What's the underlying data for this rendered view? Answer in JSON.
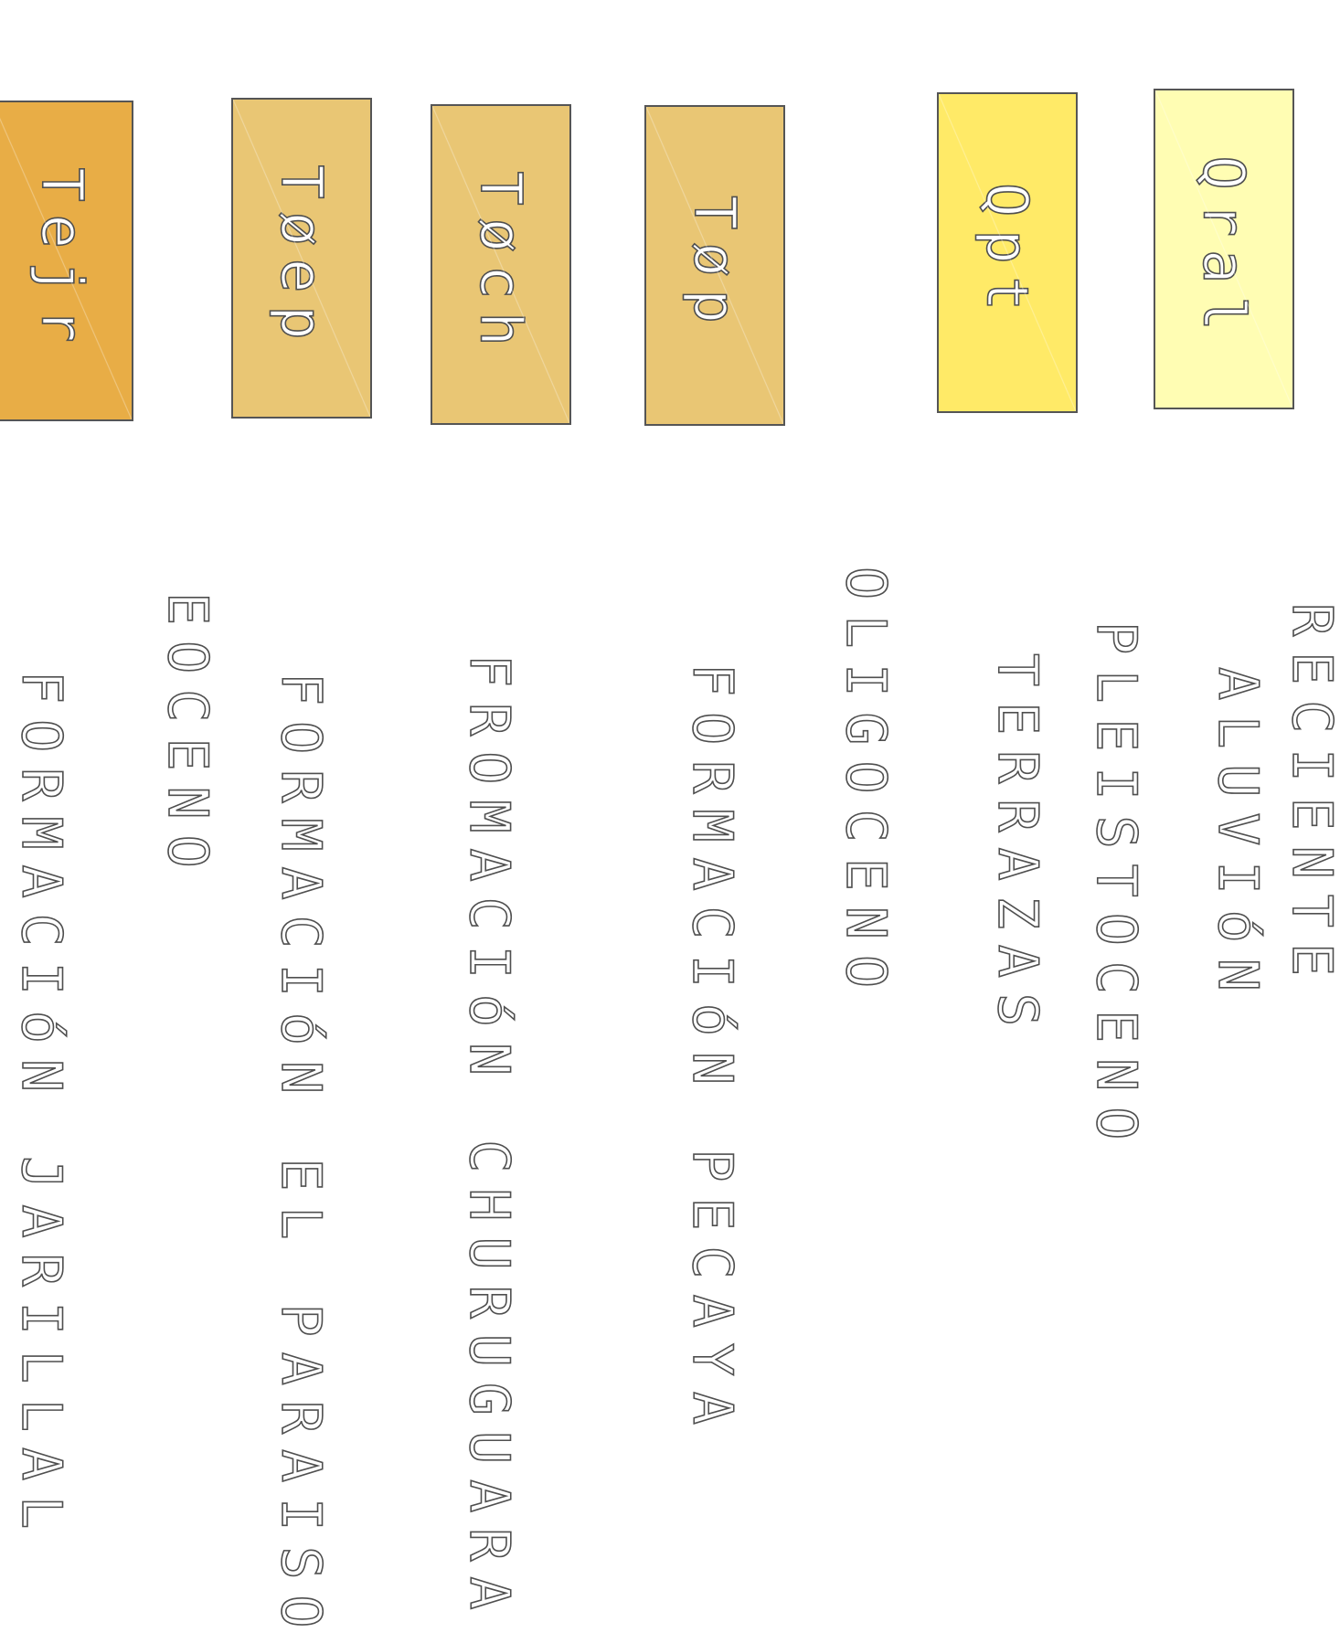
{
  "legend": {
    "units": [
      {
        "code": "Qral",
        "fill": "#fffdb3",
        "name": "ALUVIóN"
      },
      {
        "code": "Qpt",
        "fill": "#ffea67",
        "name": "TERRAZAS"
      },
      {
        "code": "Tøp",
        "fill": "#e9c674",
        "name": "FORMACIóN PECAYA"
      },
      {
        "code": "Tøch",
        "fill": "#e9c674",
        "name": "FROMACIóN CHURUGUARA"
      },
      {
        "code": "Tøep",
        "fill": "#e9c674",
        "name": "FORMACIóN EL PARAISO"
      },
      {
        "code": "Tejr",
        "fill": "#e8ad46",
        "name": "FORMACIóN JARILLAL"
      }
    ],
    "epochs": {
      "reciente": "RECIENTE",
      "pleistoceno": "PLEISTOCENO",
      "oligoceno": "OLIGOCENO",
      "eoceno": "EOCENO"
    }
  }
}
